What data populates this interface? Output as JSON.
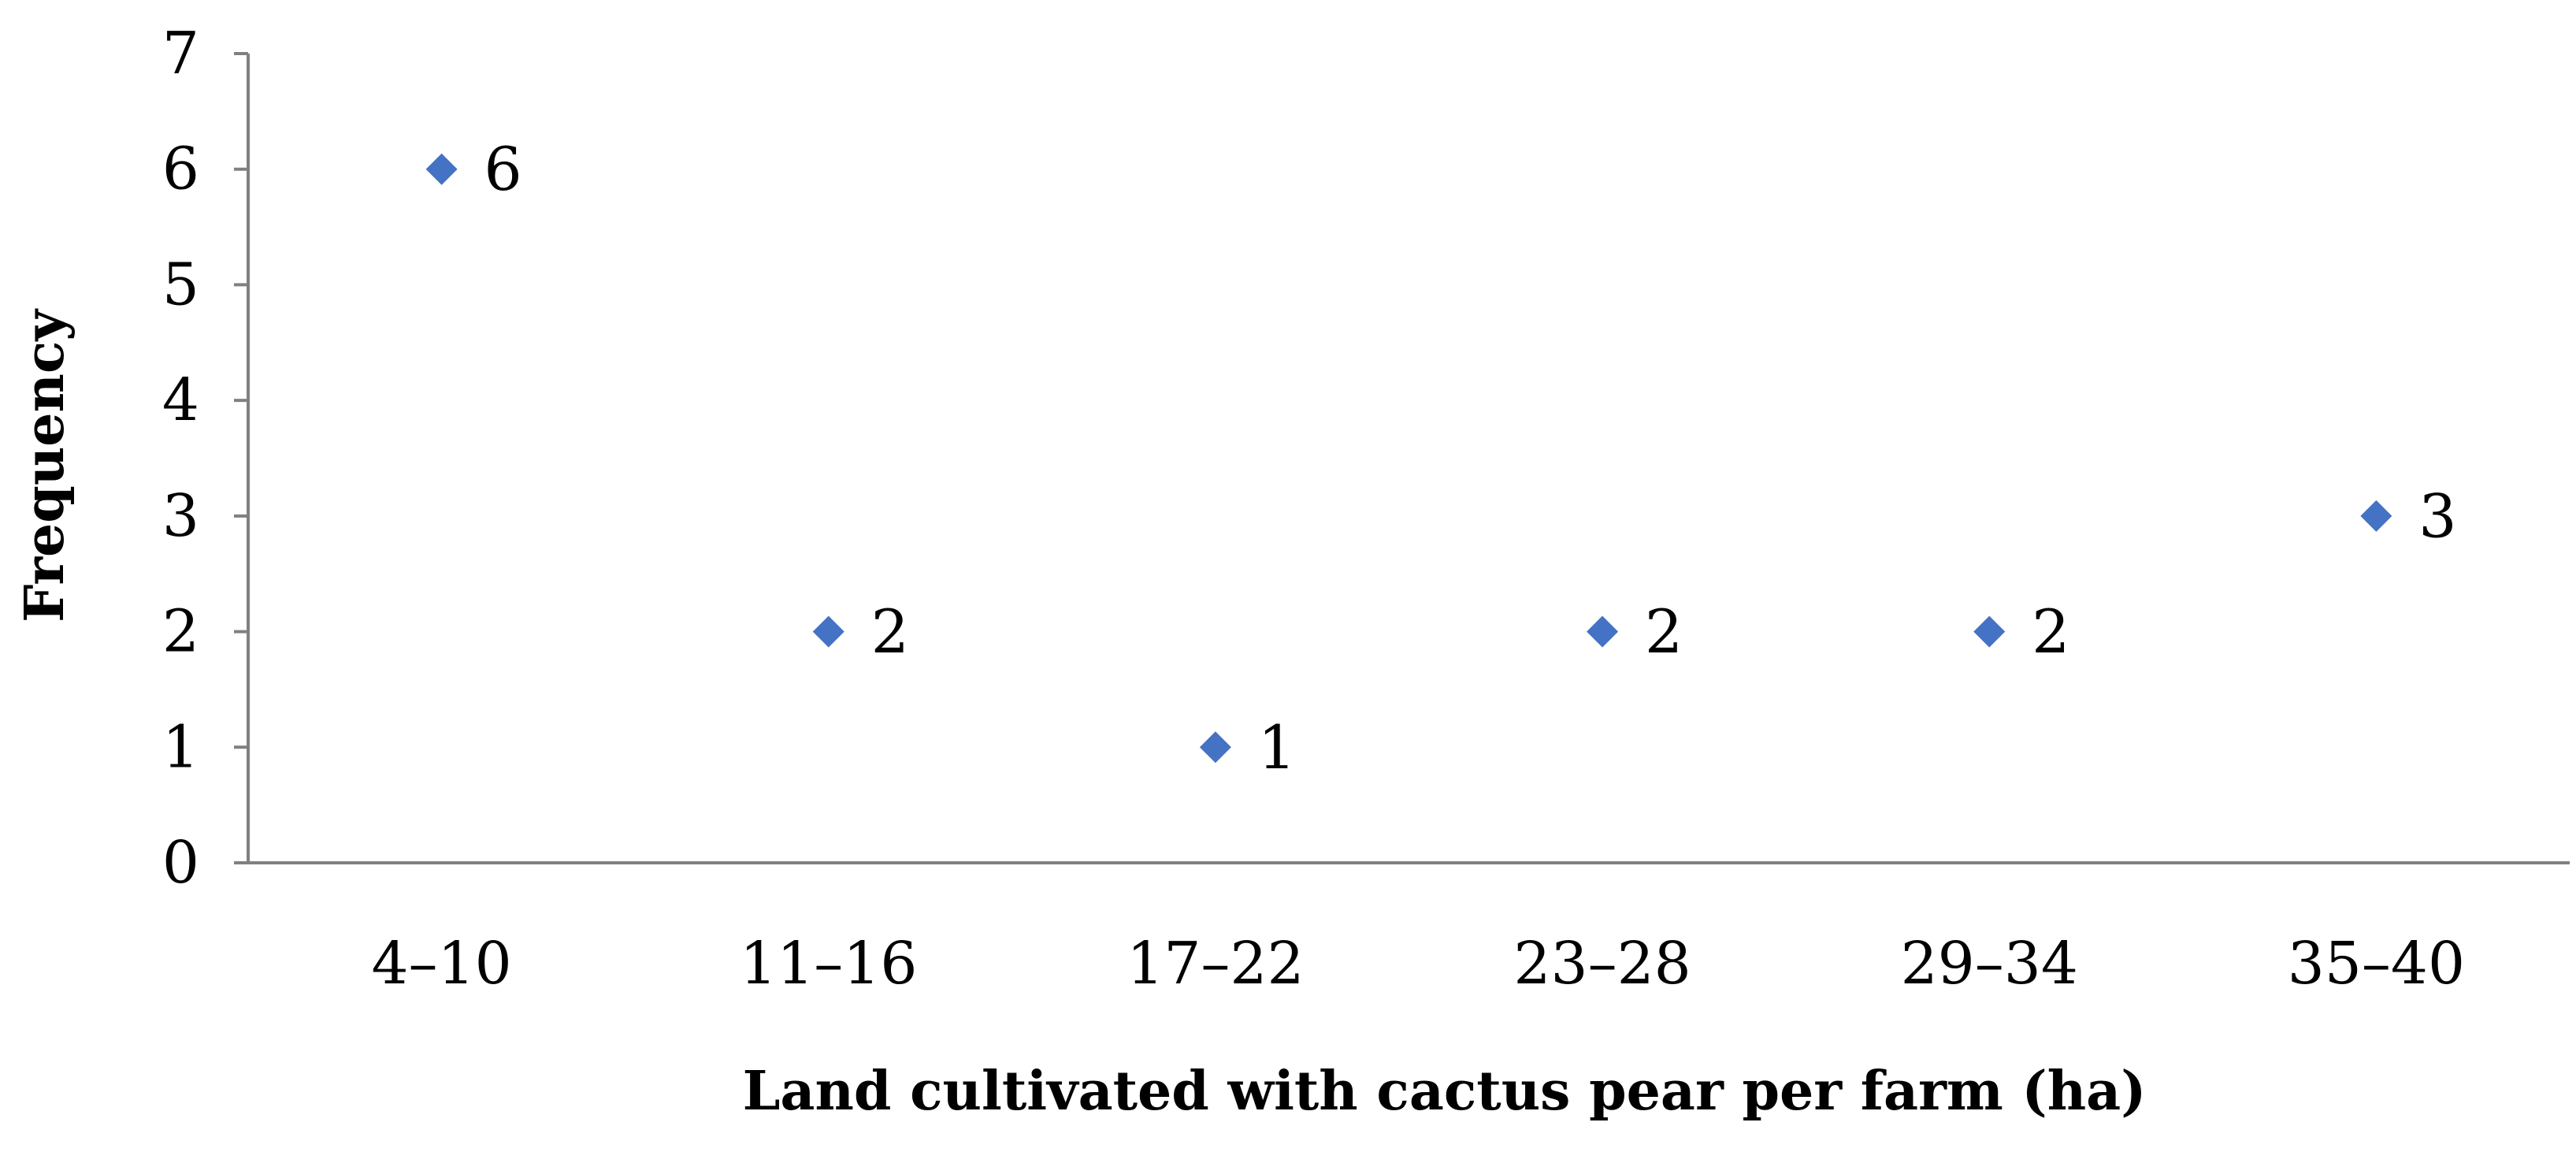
{
  "chart_data": {
    "type": "scatter",
    "categories": [
      "4–10",
      "11–16",
      "17–22",
      "23–28",
      "29–34",
      "35–40"
    ],
    "values": [
      6,
      2,
      1,
      2,
      2,
      3
    ],
    "data_labels": [
      "6",
      "2",
      "1",
      "2",
      "2",
      "3"
    ],
    "ylim": [
      0,
      7
    ],
    "yticks": [
      "0",
      "1",
      "2",
      "3",
      "4",
      "5",
      "6",
      "7"
    ],
    "xlabel": "Land cultivated with cactus pear per farm (ha)",
    "ylabel": "Frequency",
    "marker": "diamond",
    "marker_color": "#4472C4",
    "grid": false,
    "legend": "none"
  }
}
